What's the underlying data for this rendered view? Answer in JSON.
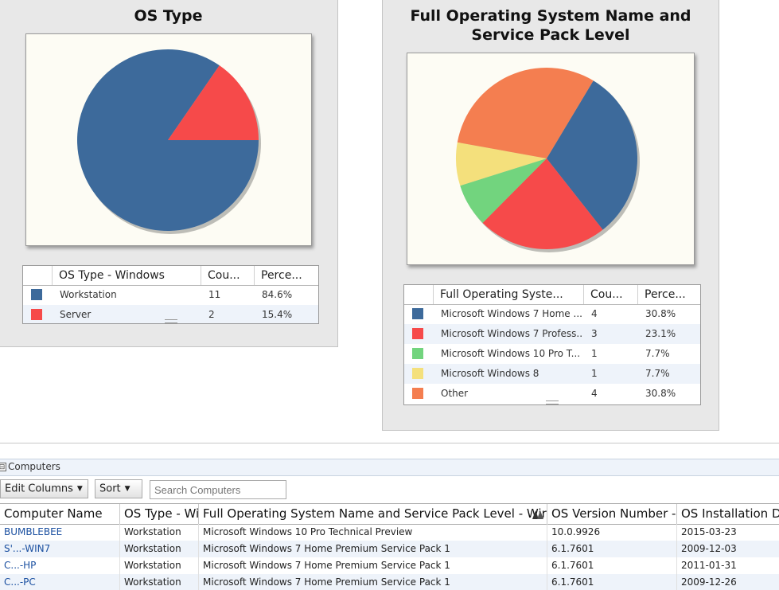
{
  "os_type_panel": {
    "title": "OS Type",
    "legend": {
      "headers": [
        "OS Type - Windows",
        "Cou...",
        "Perce..."
      ],
      "rows": [
        {
          "label": "Workstation",
          "count": "11",
          "percent": "84.6%",
          "color": "#3d6a9b"
        },
        {
          "label": "Server",
          "count": "2",
          "percent": "15.4%",
          "color": "#f64a4a"
        }
      ]
    }
  },
  "full_os_panel": {
    "title_line1": "Full Operating System Name and",
    "title_line2": "Service Pack Level",
    "legend": {
      "headers": [
        "Full Operating Syste...",
        "Cou...",
        "Perce..."
      ],
      "rows": [
        {
          "label": "Microsoft Windows 7 Home ...",
          "count": "4",
          "percent": "30.8%",
          "color": "#3d6a9b"
        },
        {
          "label": "Microsoft Windows 7 Profess...",
          "count": "3",
          "percent": "23.1%",
          "color": "#f64a4a"
        },
        {
          "label": "Microsoft Windows 10 Pro T...",
          "count": "1",
          "percent": "7.7%",
          "color": "#72d47e"
        },
        {
          "label": "Microsoft Windows 8",
          "count": "1",
          "percent": "7.7%",
          "color": "#f4e07c"
        },
        {
          "label": "Other",
          "count": "4",
          "percent": "30.8%",
          "color": "#f47e50"
        }
      ]
    }
  },
  "chart_data": [
    {
      "type": "pie",
      "title": "OS Type",
      "categories": [
        "Workstation",
        "Server"
      ],
      "values": [
        11,
        2
      ],
      "percent": [
        84.6,
        15.4
      ],
      "colors": [
        "#3d6a9b",
        "#f64a4a"
      ]
    },
    {
      "type": "pie",
      "title": "Full Operating System Name and Service Pack Level",
      "categories": [
        "Microsoft Windows 7 Home ...",
        "Microsoft Windows 7 Profess...",
        "Microsoft Windows 10 Pro T...",
        "Microsoft Windows 8",
        "Other"
      ],
      "values": [
        4,
        3,
        1,
        1,
        4
      ],
      "percent": [
        30.8,
        23.1,
        7.7,
        7.7,
        30.8
      ],
      "colors": [
        "#3d6a9b",
        "#f64a4a",
        "#72d47e",
        "#f4e07c",
        "#f47e50"
      ]
    }
  ],
  "computers_section": {
    "title": "Computers",
    "toggle": "⊟",
    "edit_columns_label": "Edit Columns",
    "sort_label": "Sort",
    "search_placeholder": "Search Computers",
    "columns": [
      "Computer Name",
      "OS Type - Wi",
      "Full Operating System Name and Service Pack Level - Wir",
      "OS Version Number -",
      "OS Installation D"
    ],
    "rows": [
      [
        "BUMBLEBEE",
        "Workstation",
        "Microsoft Windows 10 Pro Technical Preview",
        "10.0.9926",
        "2015-03-23"
      ],
      [
        "S'...-WIN7",
        "Workstation",
        "Microsoft Windows 7 Home Premium Service Pack 1",
        "6.1.7601",
        "2009-12-03"
      ],
      [
        "C...-HP",
        "Workstation",
        "Microsoft Windows 7 Home Premium Service Pack 1",
        "6.1.7601",
        "2011-01-31"
      ],
      [
        "C...-PC",
        "Workstation",
        "Microsoft Windows 7 Home Premium Service Pack 1",
        "6.1.7601",
        "2009-12-26"
      ]
    ]
  }
}
